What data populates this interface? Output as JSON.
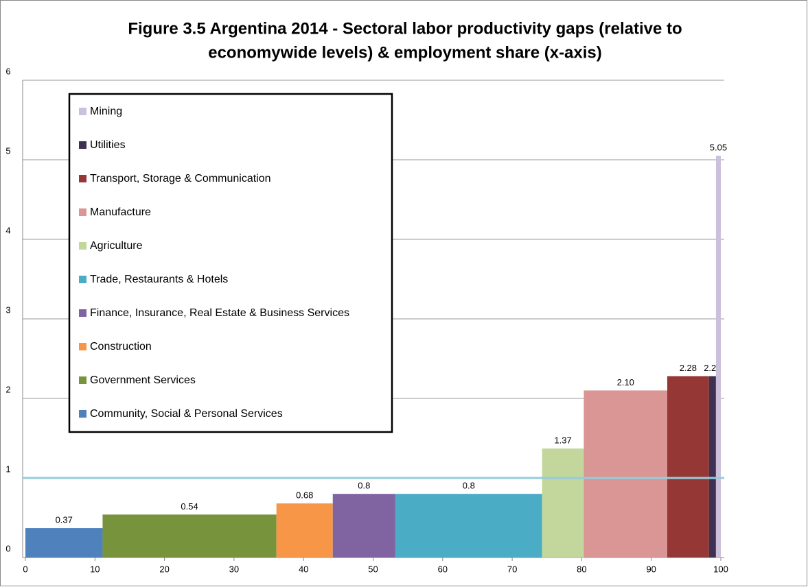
{
  "chart_data": {
    "type": "variable-width-bar",
    "title": [
      "Figure 3.5 Argentina 2014 - Sectoral labor productivity gaps (relative to",
      "economywide levels) & employment share (x-axis)"
    ],
    "categories": [
      "Community, Social & Personal Services",
      "Government Services",
      "Construction",
      "Finance, Insurance, Real Estate & Business Services",
      "Trade, Restaurants & Hotels",
      "Agriculture",
      "Manufacture",
      "Transport, Storage & Communication",
      "Utilities",
      "Mining"
    ],
    "values": [
      0.37,
      0.54,
      0.68,
      0.8,
      0.8,
      1.37,
      2.1,
      2.28,
      2.28,
      5.05
    ],
    "value_labels": [
      "0.37",
      "0.54",
      "0.68",
      "0.8",
      "0.8",
      "1.37",
      "2.10",
      "2.28",
      "2.28",
      "5.05"
    ],
    "colors": [
      "#4f81bd",
      "#77933c",
      "#f79646",
      "#8064a2",
      "#4bacc6",
      "#c3d69b",
      "#d99694",
      "#953735",
      "#3f3151",
      "#ccc1da"
    ],
    "bins": [
      0,
      11.1,
      36.1,
      44.2,
      53.2,
      74.3,
      80.3,
      92.3,
      98.3,
      99.3,
      100
    ],
    "reference_line": 1,
    "reference_color": "#93cddd",
    "xlim": [
      0,
      100
    ],
    "xticks": [
      0,
      10,
      20,
      30,
      40,
      50,
      60,
      70,
      80,
      90,
      100
    ],
    "ylim": [
      0,
      6
    ],
    "yticks": [
      0,
      1,
      2,
      3,
      4,
      5,
      6
    ],
    "grid": true,
    "legend": "upper left"
  }
}
